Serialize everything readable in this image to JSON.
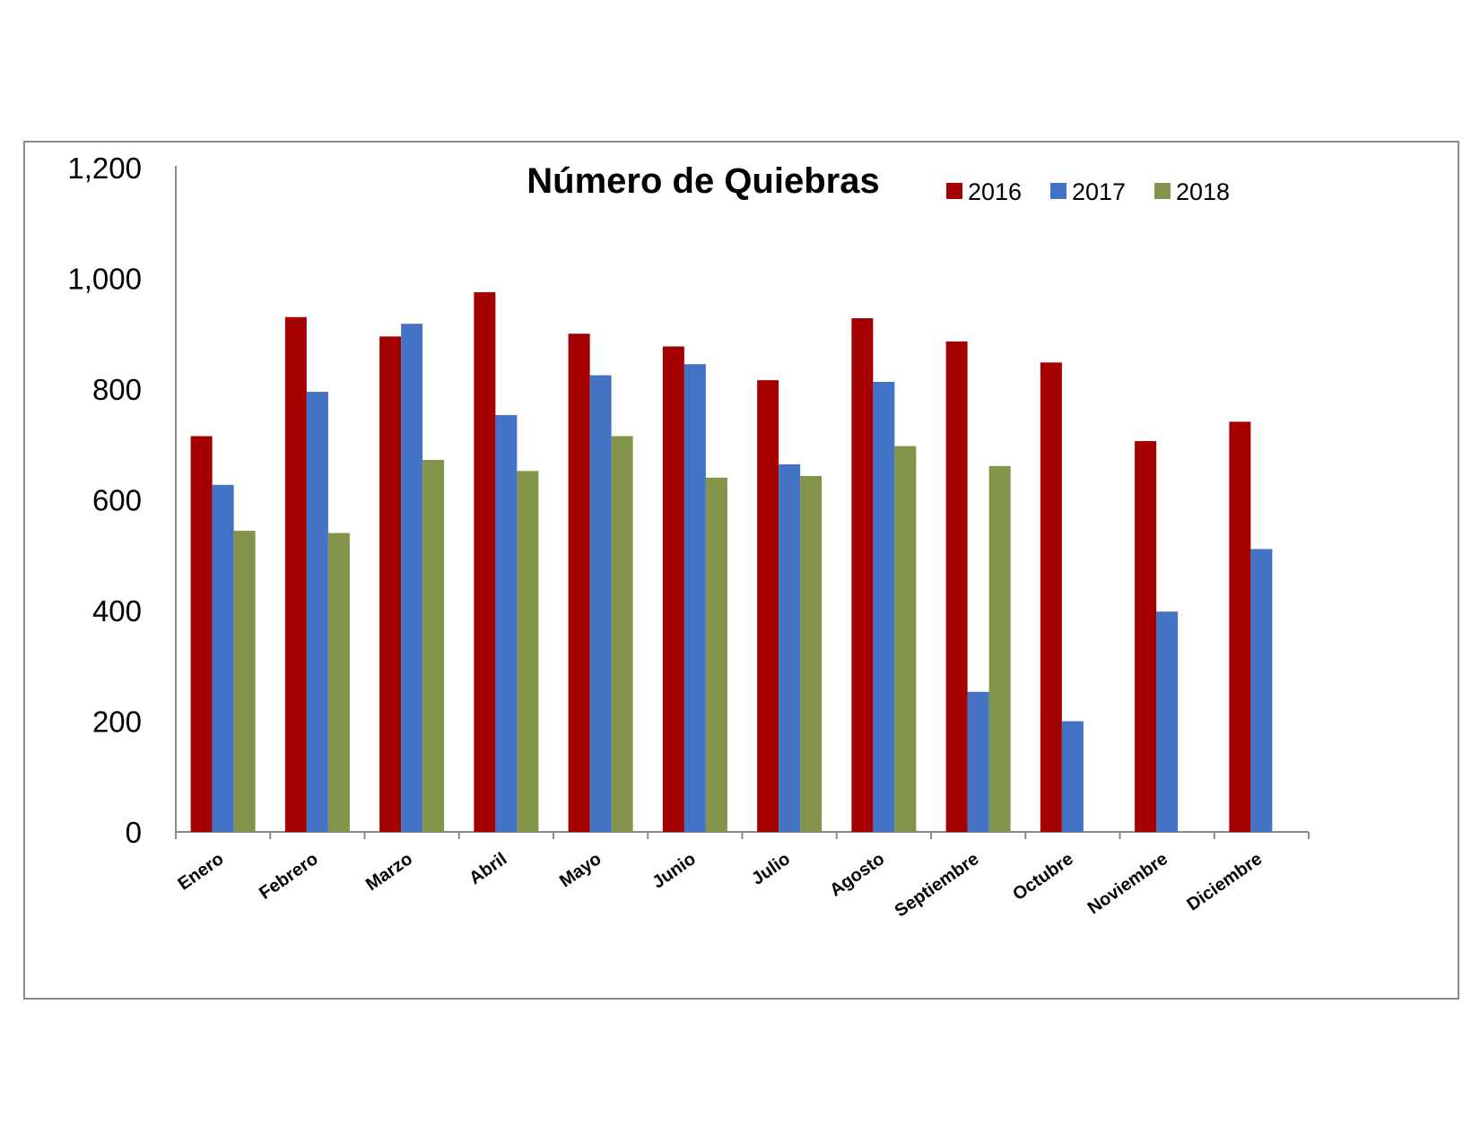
{
  "chart_data": {
    "type": "bar",
    "title": "Número de Quiebras",
    "xlabel": "",
    "ylabel": "",
    "ylim": [
      0,
      1200
    ],
    "y_ticks": [
      "0",
      "200",
      "400",
      "600",
      "800",
      "1,000",
      "1,200"
    ],
    "y_tick_values": [
      0,
      200,
      400,
      600,
      800,
      1000,
      1200
    ],
    "grid": false,
    "legend_position": "top-right",
    "categories": [
      "Enero",
      "Febrero",
      "Marzo",
      "Abril",
      "Mayo",
      "Junio",
      "Julio",
      "Agosto",
      "Septiembre",
      "Octubre",
      "Noviembre",
      "Diciembre"
    ],
    "series": [
      {
        "name": "2016",
        "color": "#a50000",
        "values": [
          715,
          930,
          895,
          975,
          900,
          877,
          816,
          928,
          886,
          848,
          706,
          741
        ]
      },
      {
        "name": "2017",
        "color": "#4472c4",
        "values": [
          627,
          795,
          918,
          753,
          825,
          845,
          664,
          813,
          253,
          200,
          398,
          511
        ]
      },
      {
        "name": "2018",
        "color": "#82944a",
        "values": [
          544,
          540,
          672,
          652,
          715,
          640,
          643,
          697,
          661,
          null,
          null,
          null
        ]
      }
    ]
  }
}
